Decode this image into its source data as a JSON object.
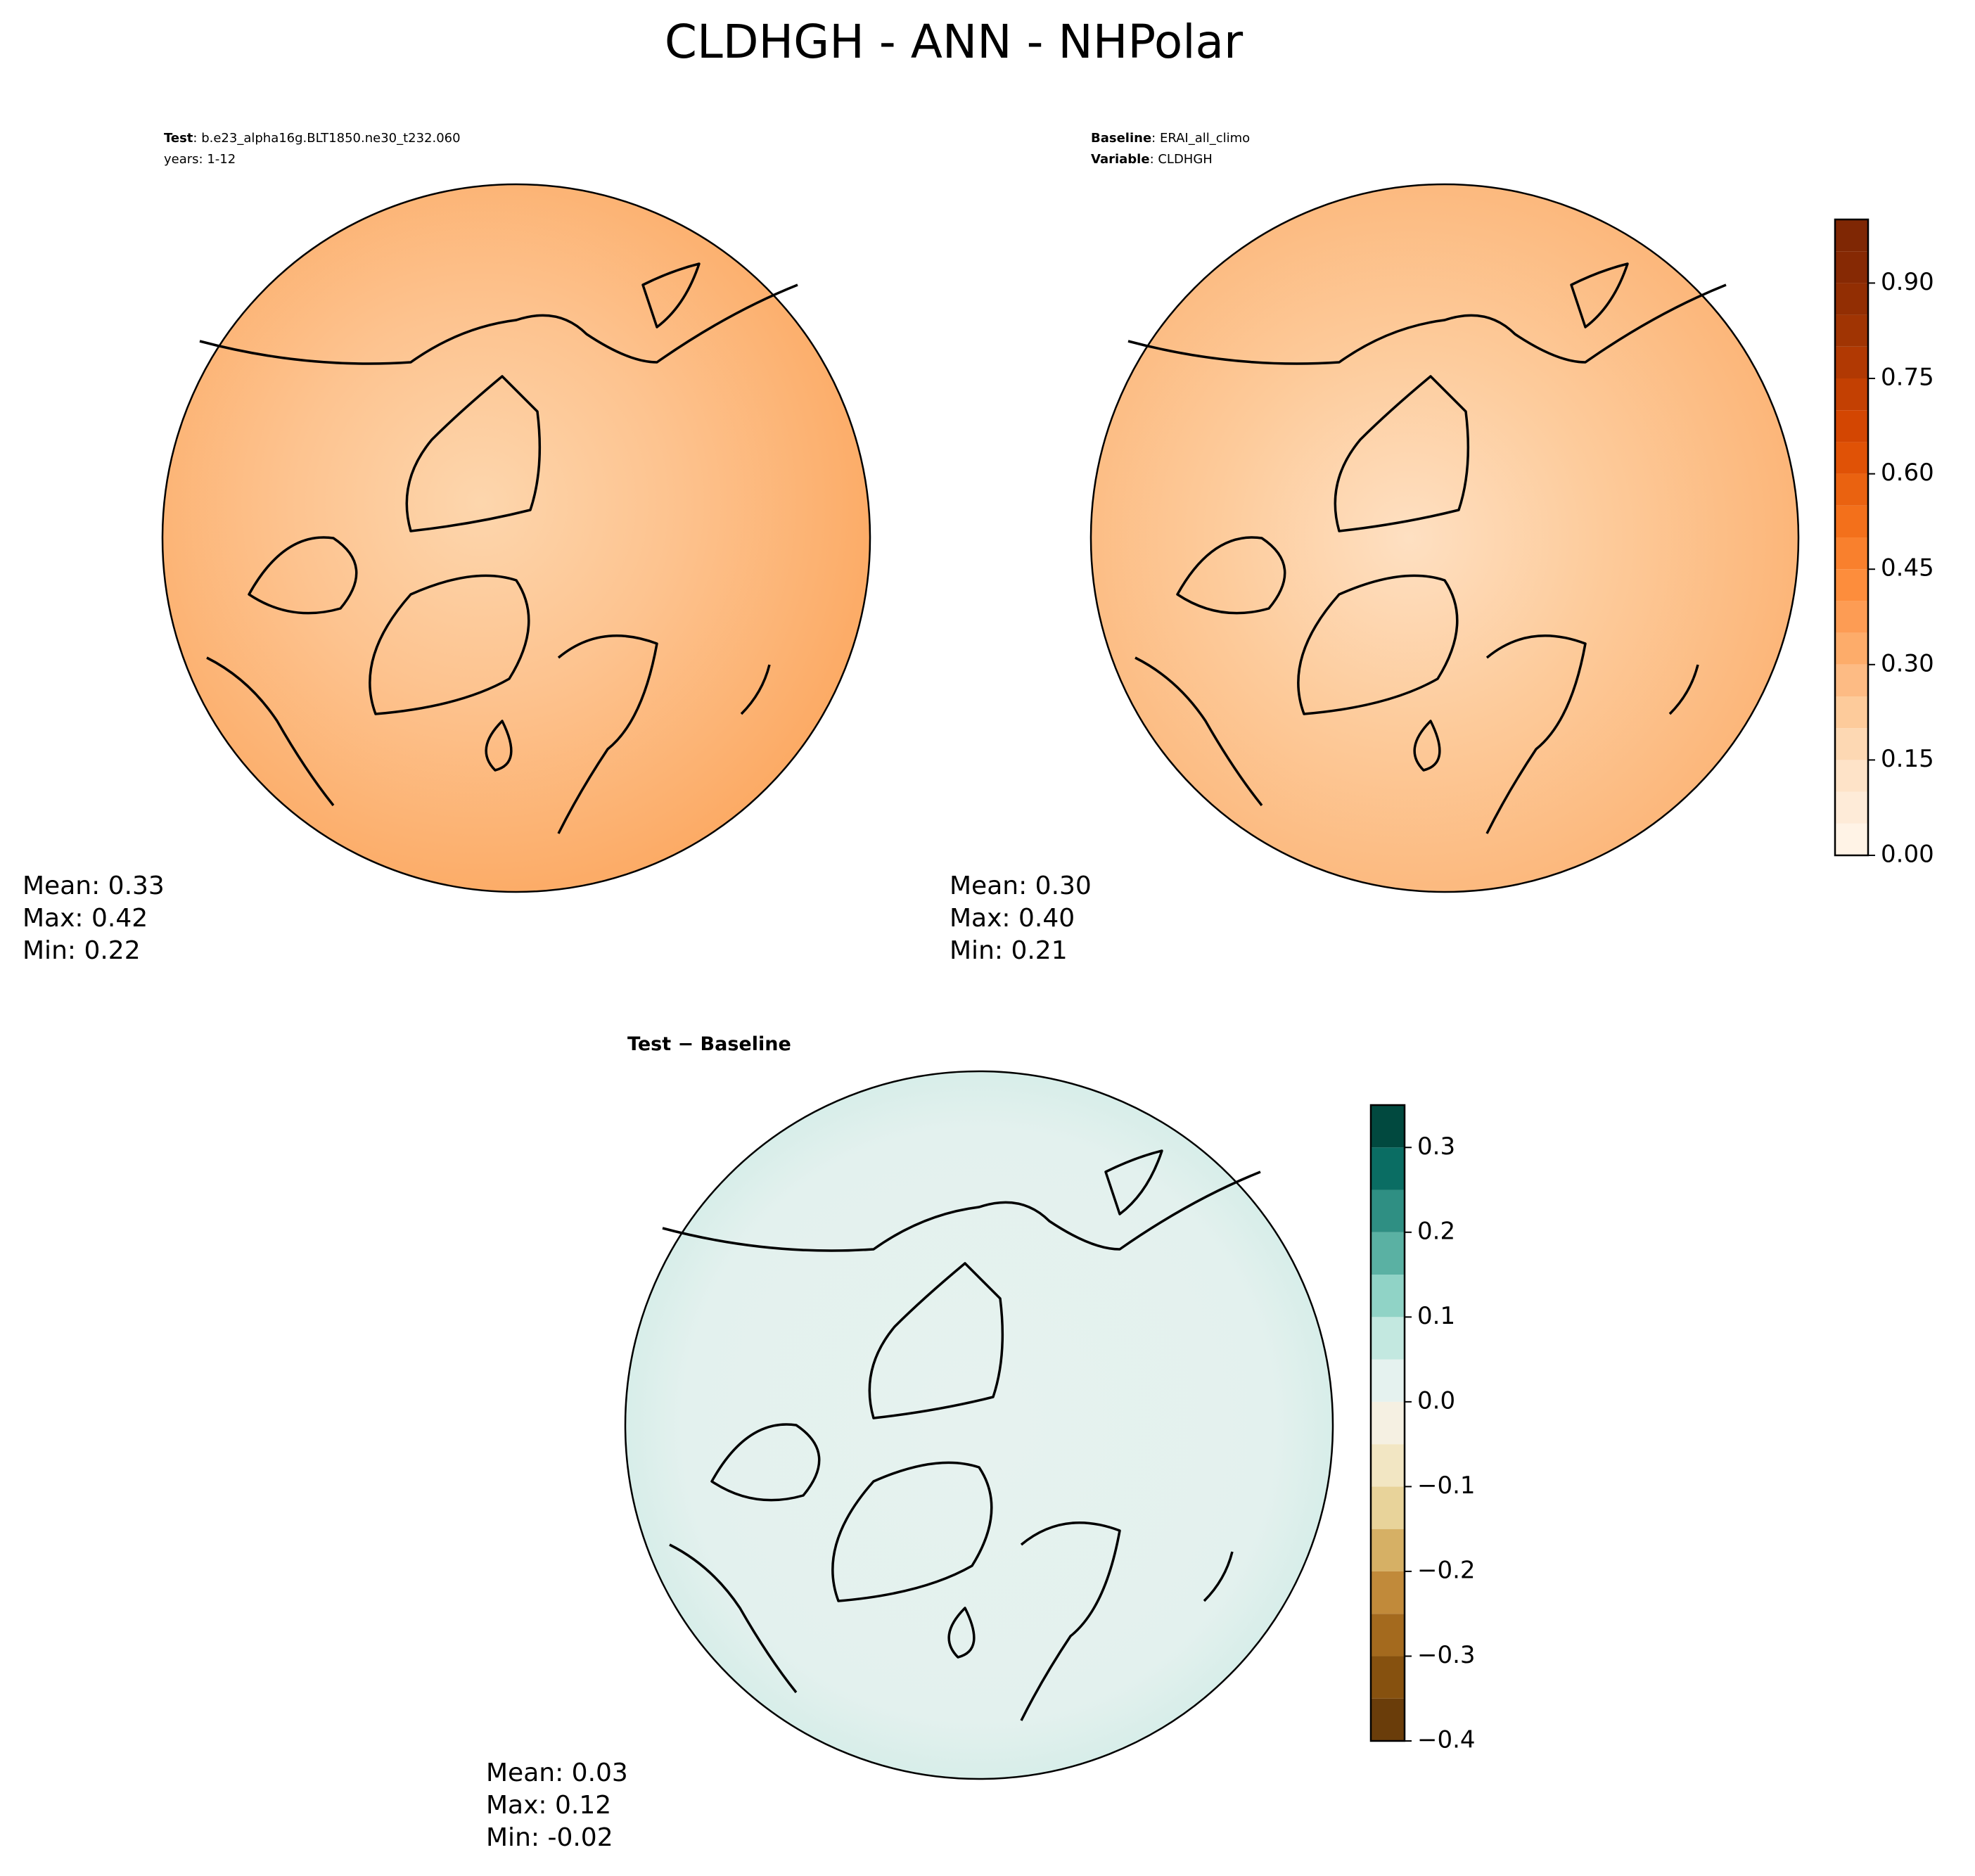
{
  "title": "CLDHGH - ANN - NHPolar",
  "chart_data": [
    {
      "type": "polar-map",
      "header": [
        {
          "label": "Test",
          "text": ": b.e23_alpha16g.BLT1850.ne30_t232.060"
        },
        {
          "text": "years: 1-12"
        }
      ],
      "stats": [
        "Mean:  0.33",
        "Max:  0.42",
        "Min:  0.22"
      ]
    },
    {
      "type": "polar-map",
      "header": [
        {
          "label": "Baseline",
          "text": ": ERAI_all_climo"
        },
        {
          "label": "Variable",
          "text": ": CLDHGH"
        }
      ],
      "stats": [
        "Mean:  0.30",
        "Max:  0.40",
        "Min:  0.21"
      ],
      "colorbar": {
        "ylim": [
          0,
          1.0
        ],
        "levels": [
          0,
          0.05,
          0.1,
          0.15,
          0.2,
          0.25,
          0.3,
          0.35,
          0.4,
          0.45,
          0.5,
          0.55,
          0.6,
          0.65,
          0.7,
          0.75,
          0.8,
          0.85,
          0.9,
          0.95,
          1.0
        ],
        "colors": [
          "#fff3e6",
          "#feebd8",
          "#fee3c8",
          "#fdd8b3",
          "#fdcb9b",
          "#fdbb84",
          "#fdac6a",
          "#fd9c54",
          "#fd8d3c",
          "#f9802d",
          "#f3701b",
          "#ea6210",
          "#e05206",
          "#d34602",
          "#c34002",
          "#b13903",
          "#a03403",
          "#922e03",
          "#862904",
          "#7f2704"
        ],
        "yticks": [
          {
            "value": 0,
            "label": "0.00"
          },
          {
            "value": 0.15,
            "label": "0.15"
          },
          {
            "value": 0.3,
            "label": "0.30"
          },
          {
            "value": 0.45,
            "label": "0.45"
          },
          {
            "value": 0.6,
            "label": "0.60"
          },
          {
            "value": 0.75,
            "label": "0.75"
          },
          {
            "value": 0.9,
            "label": "0.90"
          }
        ]
      }
    },
    {
      "type": "polar-map",
      "header": [
        {
          "label": "Test − Baseline"
        }
      ],
      "stats": [
        "Mean:  0.03",
        "Max:  0.12",
        "Min: -0.02"
      ],
      "colorbar": {
        "ylim": [
          -0.4,
          0.35
        ],
        "levels": [
          -0.4,
          -0.35,
          -0.3,
          -0.25,
          -0.2,
          -0.15,
          -0.1,
          -0.05,
          0,
          0.05,
          0.1,
          0.15,
          0.2,
          0.25,
          0.3,
          0.35
        ],
        "colors": [
          "#6a3d0a",
          "#86510f",
          "#a46a1e",
          "#c18a3a",
          "#d6b065",
          "#e8d39a",
          "#f2e6c3",
          "#f5f0e2",
          "#e5f2ef",
          "#c3e8e0",
          "#90d3c6",
          "#5ab1a3",
          "#2f8f83",
          "#0a6d63",
          "#01493f"
        ],
        "yticks": [
          {
            "value": -0.4,
            "label": "−0.4"
          },
          {
            "value": -0.3,
            "label": "−0.3"
          },
          {
            "value": -0.2,
            "label": "−0.2"
          },
          {
            "value": -0.1,
            "label": "−0.1"
          },
          {
            "value": 0,
            "label": "0.0"
          },
          {
            "value": 0.1,
            "label": "0.1"
          },
          {
            "value": 0.2,
            "label": "0.2"
          },
          {
            "value": 0.3,
            "label": "0.3"
          }
        ]
      }
    }
  ]
}
